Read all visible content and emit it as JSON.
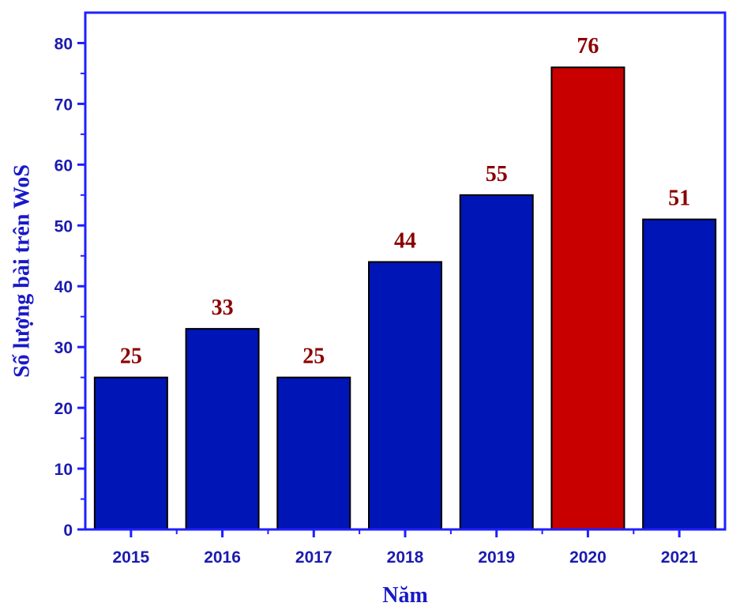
{
  "chart_data": {
    "type": "bar",
    "categories": [
      "2015",
      "2016",
      "2017",
      "2018",
      "2019",
      "2020",
      "2021"
    ],
    "values": [
      25,
      33,
      25,
      44,
      55,
      76,
      51
    ],
    "data_labels": [
      "25",
      "33",
      "25",
      "44",
      "55",
      "76",
      "51"
    ],
    "highlight_index": 5,
    "title": "",
    "xlabel": "Năm",
    "ylabel": "Số lượng bài trên WoS",
    "ylim": [
      0,
      85
    ],
    "yticks": [
      0,
      10,
      20,
      30,
      40,
      50,
      60,
      70,
      80
    ],
    "ytick_labels": [
      "0",
      "10",
      "20",
      "30",
      "40",
      "50",
      "60",
      "70",
      "80"
    ],
    "grid": false,
    "legend": "none",
    "colors": {
      "bar": "#0015B5",
      "highlight_bar": "#C80000",
      "bar_outline": "#000000",
      "axis": "#1F1FFF",
      "tick_label": "#1B1BB0",
      "axis_title": "#1919C8",
      "data_label": "#8B0000"
    }
  }
}
